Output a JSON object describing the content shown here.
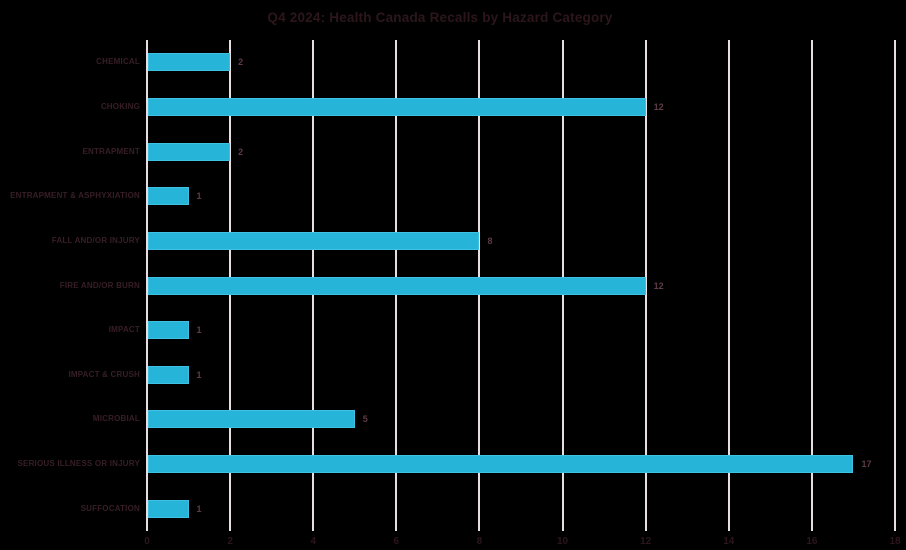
{
  "title": "Q4 2024: Health Canada Recalls by Hazard Category",
  "chart_data": {
    "type": "bar",
    "orientation": "horizontal",
    "title": "Q4 2024: Health Canada Recalls by Hazard Category",
    "categories": [
      "CHEMICAL",
      "CHOKING",
      "ENTRAPMENT",
      "ENTRAPMENT & ASPHYXIATION",
      "FALL AND/OR INJURY",
      "FIRE AND/OR BURN",
      "IMPACT",
      "IMPACT & CRUSH",
      "MICROBIAL",
      "SERIOUS ILLNESS OR INJURY",
      "SUFFOCATION"
    ],
    "values": [
      2,
      12,
      2,
      1,
      8,
      12,
      1,
      1,
      5,
      17,
      1
    ],
    "value_labels": [
      "2",
      "12",
      "2",
      "1",
      "8",
      "12",
      "1",
      "1",
      "5",
      "17",
      "1"
    ],
    "xlabel": "",
    "ylabel": "",
    "xlim": [
      0,
      18
    ],
    "xticks": [
      0,
      2,
      4,
      6,
      8,
      10,
      12,
      14,
      16,
      18
    ],
    "grid": true,
    "legend": "none",
    "colors": {
      "background": "#000000",
      "bar_fill": "#27b4d9",
      "bar_border": "#3ec1e2",
      "gridline": "#e8dde3",
      "title_text": "#2c161c",
      "category_text": "#381e27",
      "value_text": "#5e3b47",
      "tick_text": "#2c161c"
    }
  }
}
